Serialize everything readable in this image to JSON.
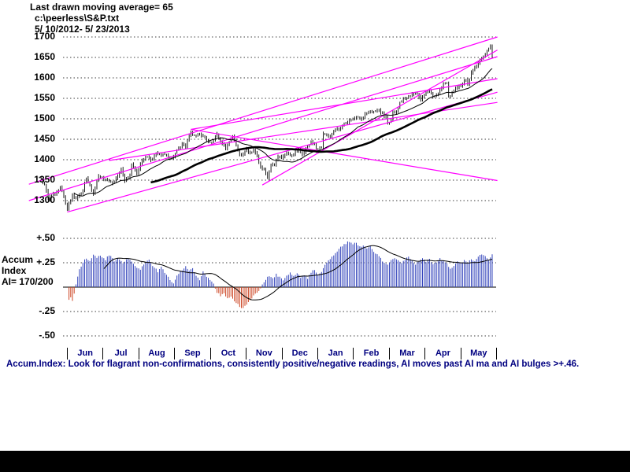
{
  "header": {
    "line1": "Last drawn moving average= 65",
    "line2": "c:\\peerless\\S&P.txt",
    "line3": "5/ 10/2012- 5/ 23/2013"
  },
  "left_panel": {
    "accum_label_1": "Accum",
    "accum_label_2": "Index",
    "ai_ratio": "AI= 170/200"
  },
  "footer_note": "Accum.Index: Look for flagrant non-confirmations, consistently positive/negative readings, AI moves past AI ma and AI bulges >+.46.",
  "colors": {
    "background": "#ffffff",
    "price_bars": "#000000",
    "moving_average": "#000000",
    "trendline": "#ff00ff",
    "ai_positive": "#3344bb",
    "ai_negative": "#cc4422",
    "axis_text": "#000000",
    "month_text": "#000080",
    "caption_text": "#000080",
    "footer_bar": "#000000"
  },
  "chart_data": [
    {
      "type": "bar",
      "title": "S&P 500 daily OHLC bars with 21-day and 65-day moving averages and magenta trend channels",
      "date_range": "5/10/2012 - 5/23/2013",
      "grid": "dashed",
      "y_axis": {
        "min": 1300,
        "max": 1700,
        "ticks": [
          1700,
          1650,
          1600,
          1550,
          1500,
          1450,
          1400,
          1350,
          1300
        ]
      },
      "x_months": [
        "Jun",
        "Jul",
        "Aug",
        "Sep",
        "Oct",
        "Nov",
        "Dec",
        "Jan",
        "Feb",
        "Mar",
        "Apr",
        "May"
      ],
      "close_anchors": [
        [
          0,
          1358
        ],
        [
          3,
          1338
        ],
        [
          5,
          1305
        ],
        [
          8,
          1317
        ],
        [
          10,
          1320
        ],
        [
          12,
          1332
        ],
        [
          14,
          1310
        ],
        [
          16,
          1278
        ],
        [
          19,
          1315
        ],
        [
          21,
          1305
        ],
        [
          23,
          1314
        ],
        [
          25,
          1325
        ],
        [
          27,
          1358
        ],
        [
          29,
          1335
        ],
        [
          31,
          1319
        ],
        [
          34,
          1362
        ],
        [
          36,
          1356
        ],
        [
          39,
          1352
        ],
        [
          42,
          1341
        ],
        [
          44,
          1353
        ],
        [
          47,
          1377
        ],
        [
          49,
          1350
        ],
        [
          52,
          1360
        ],
        [
          53,
          1386
        ],
        [
          56,
          1365
        ],
        [
          58,
          1391
        ],
        [
          60,
          1401
        ],
        [
          62,
          1406
        ],
        [
          65,
          1398
        ],
        [
          67,
          1418
        ],
        [
          70,
          1413
        ],
        [
          72,
          1411
        ],
        [
          75,
          1403
        ],
        [
          77,
          1407
        ],
        [
          79,
          1425
        ],
        [
          82,
          1438
        ],
        [
          84,
          1433
        ],
        [
          87,
          1466
        ],
        [
          90,
          1457
        ],
        [
          92,
          1460
        ],
        [
          95,
          1456
        ],
        [
          97,
          1441
        ],
        [
          100,
          1445
        ],
        [
          102,
          1461
        ],
        [
          104,
          1441
        ],
        [
          107,
          1429
        ],
        [
          109,
          1441
        ],
        [
          111,
          1457
        ],
        [
          113,
          1433
        ],
        [
          115,
          1413
        ],
        [
          117,
          1412
        ],
        [
          119,
          1427
        ],
        [
          121,
          1414
        ],
        [
          123,
          1428
        ],
        [
          125,
          1408
        ],
        [
          127,
          1380
        ],
        [
          129,
          1375
        ],
        [
          131,
          1353
        ],
        [
          133,
          1387
        ],
        [
          135,
          1391
        ],
        [
          137,
          1409
        ],
        [
          139,
          1406
        ],
        [
          142,
          1416
        ],
        [
          144,
          1409
        ],
        [
          147,
          1418
        ],
        [
          149,
          1428
        ],
        [
          151,
          1413
        ],
        [
          153,
          1430
        ],
        [
          156,
          1443
        ],
        [
          158,
          1436
        ],
        [
          159,
          1420
        ],
        [
          161,
          1430
        ],
        [
          162,
          1426
        ],
        [
          163,
          1462
        ],
        [
          165,
          1459
        ],
        [
          167,
          1457
        ],
        [
          170,
          1472
        ],
        [
          172,
          1472
        ],
        [
          175,
          1486
        ],
        [
          177,
          1493
        ],
        [
          179,
          1495
        ],
        [
          182,
          1508
        ],
        [
          184,
          1498
        ],
        [
          187,
          1511
        ],
        [
          189,
          1517
        ],
        [
          192,
          1519
        ],
        [
          194,
          1521
        ],
        [
          197,
          1512
        ],
        [
          199,
          1503
        ],
        [
          200,
          1488
        ],
        [
          202,
          1496
        ],
        [
          203,
          1515
        ],
        [
          205,
          1518
        ],
        [
          207,
          1541
        ],
        [
          210,
          1551
        ],
        [
          212,
          1554
        ],
        [
          214,
          1563
        ],
        [
          217,
          1559
        ],
        [
          219,
          1546
        ],
        [
          222,
          1563
        ],
        [
          224,
          1569
        ],
        [
          226,
          1553
        ],
        [
          228,
          1560
        ],
        [
          230,
          1569
        ],
        [
          232,
          1587
        ],
        [
          234,
          1589
        ],
        [
          235,
          1552
        ],
        [
          237,
          1562
        ],
        [
          239,
          1575
        ],
        [
          241,
          1579
        ],
        [
          243,
          1585
        ],
        [
          245,
          1598
        ],
        [
          246,
          1583
        ],
        [
          248,
          1614
        ],
        [
          250,
          1626
        ],
        [
          252,
          1633
        ],
        [
          254,
          1651
        ],
        [
          256,
          1658
        ],
        [
          258,
          1669
        ],
        [
          259,
          1680
        ],
        [
          260,
          1650
        ]
      ],
      "moving_averages": [
        {
          "period": 21,
          "width": 1
        },
        {
          "period": 65,
          "width": 2.6
        }
      ],
      "trendlines": [
        {
          "d1": -6,
          "p1": 1300,
          "d2": 263,
          "p2": 1652
        },
        {
          "d1": -6,
          "p1": 1340,
          "d2": 263,
          "p2": 1700
        },
        {
          "d1": 16,
          "p1": 1272,
          "d2": 263,
          "p2": 1565
        },
        {
          "d1": 128,
          "p1": 1338,
          "d2": 263,
          "p2": 1668
        },
        {
          "d1": 87,
          "p1": 1474,
          "d2": 263,
          "p2": 1598
        },
        {
          "d1": 40,
          "p1": 1398,
          "d2": 263,
          "p2": 1540
        },
        {
          "d1": 87,
          "p1": 1474,
          "d2": 263,
          "p2": 1349
        }
      ]
    },
    {
      "type": "bar",
      "title": "Accumulation Index histogram with moving average",
      "y_axis": {
        "min": -0.5,
        "max": 0.5,
        "tick_values": [
          0.5,
          0.25,
          -0.25,
          -0.5
        ],
        "tick_labels": [
          "+.50",
          "+.25",
          "-.25",
          "-.50"
        ]
      },
      "value_anchors": [
        [
          17,
          -0.13
        ],
        [
          18,
          -0.1
        ],
        [
          19,
          -0.14
        ],
        [
          20,
          -0.06
        ],
        [
          21,
          0.02
        ],
        [
          23,
          0.18
        ],
        [
          25,
          0.25
        ],
        [
          27,
          0.3
        ],
        [
          29,
          0.27
        ],
        [
          31,
          0.33
        ],
        [
          33,
          0.3
        ],
        [
          35,
          0.32
        ],
        [
          38,
          0.28
        ],
        [
          40,
          0.33
        ],
        [
          43,
          0.27
        ],
        [
          45,
          0.3
        ],
        [
          48,
          0.24
        ],
        [
          50,
          0.29
        ],
        [
          53,
          0.27
        ],
        [
          55,
          0.22
        ],
        [
          58,
          0.18
        ],
        [
          60,
          0.24
        ],
        [
          63,
          0.28
        ],
        [
          65,
          0.22
        ],
        [
          68,
          0.16
        ],
        [
          70,
          0.21
        ],
        [
          73,
          0.12
        ],
        [
          75,
          0.08
        ],
        [
          77,
          0.04
        ],
        [
          79,
          0.12
        ],
        [
          82,
          0.18
        ],
        [
          84,
          0.22
        ],
        [
          86,
          0.16
        ],
        [
          88,
          0.19
        ],
        [
          90,
          0.12
        ],
        [
          92,
          0.08
        ],
        [
          94,
          0.16
        ],
        [
          96,
          0.11
        ],
        [
          98,
          0.07
        ],
        [
          100,
          0.03
        ],
        [
          102,
          -0.05
        ],
        [
          104,
          -0.09
        ],
        [
          106,
          -0.06
        ],
        [
          108,
          -0.12
        ],
        [
          110,
          -0.09
        ],
        [
          112,
          -0.14
        ],
        [
          114,
          -0.18
        ],
        [
          116,
          -0.22
        ],
        [
          118,
          -0.19
        ],
        [
          120,
          -0.15
        ],
        [
          122,
          -0.11
        ],
        [
          124,
          -0.07
        ],
        [
          126,
          -0.04
        ],
        [
          128,
          0.03
        ],
        [
          130,
          0.08
        ],
        [
          132,
          0.12
        ],
        [
          134,
          0.09
        ],
        [
          136,
          0.13
        ],
        [
          138,
          0.1
        ],
        [
          140,
          0.07
        ],
        [
          142,
          0.12
        ],
        [
          144,
          0.15
        ],
        [
          146,
          0.11
        ],
        [
          148,
          0.14
        ],
        [
          150,
          0.1
        ],
        [
          152,
          0.13
        ],
        [
          154,
          0.09
        ],
        [
          156,
          0.15
        ],
        [
          158,
          0.18
        ],
        [
          160,
          0.12
        ],
        [
          162,
          0.16
        ],
        [
          164,
          0.22
        ],
        [
          166,
          0.27
        ],
        [
          168,
          0.31
        ],
        [
          170,
          0.35
        ],
        [
          172,
          0.39
        ],
        [
          174,
          0.42
        ],
        [
          176,
          0.45
        ],
        [
          178,
          0.47
        ],
        [
          180,
          0.44
        ],
        [
          182,
          0.46
        ],
        [
          184,
          0.41
        ],
        [
          186,
          0.43
        ],
        [
          188,
          0.39
        ],
        [
          190,
          0.42
        ],
        [
          192,
          0.37
        ],
        [
          194,
          0.33
        ],
        [
          196,
          0.29
        ],
        [
          198,
          0.25
        ],
        [
          200,
          0.22
        ],
        [
          202,
          0.27
        ],
        [
          204,
          0.3
        ],
        [
          206,
          0.27
        ],
        [
          208,
          0.24
        ],
        [
          210,
          0.28
        ],
        [
          212,
          0.31
        ],
        [
          214,
          0.27
        ],
        [
          216,
          0.24
        ],
        [
          218,
          0.27
        ],
        [
          220,
          0.3
        ],
        [
          222,
          0.26
        ],
        [
          224,
          0.29
        ],
        [
          226,
          0.23
        ],
        [
          228,
          0.26
        ],
        [
          230,
          0.29
        ],
        [
          232,
          0.27
        ],
        [
          234,
          0.24
        ],
        [
          236,
          0.18
        ],
        [
          238,
          0.22
        ],
        [
          240,
          0.26
        ],
        [
          242,
          0.24
        ],
        [
          244,
          0.27
        ],
        [
          246,
          0.25
        ],
        [
          248,
          0.29
        ],
        [
          250,
          0.27
        ],
        [
          252,
          0.31
        ],
        [
          254,
          0.34
        ],
        [
          256,
          0.31
        ],
        [
          258,
          0.28
        ],
        [
          260,
          0.33
        ]
      ],
      "ma_period": 21
    }
  ]
}
